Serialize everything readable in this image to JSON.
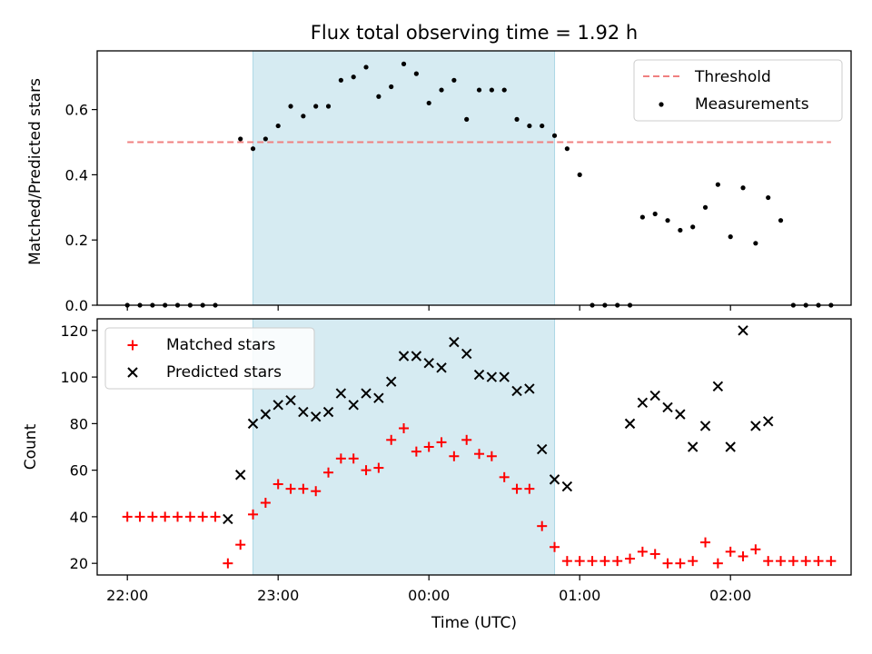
{
  "figure": {
    "title": "Flux total observing time = 1.92 h",
    "xlabel": "Time (UTC)"
  },
  "colors": {
    "threshold": "#f08080",
    "measurements": "#000000",
    "matched": "#ff0000",
    "predicted": "#000000",
    "observing_window": "#add8e6"
  },
  "chart_data": [
    {
      "type": "scatter",
      "title": "Flux total observing time = 1.92 h",
      "xlabel": "",
      "ylabel": "Matched/Predicted stars",
      "xlim": [
        "21:48",
        "02:48"
      ],
      "ylim": [
        0,
        0.78
      ],
      "yticks": [
        0.0,
        0.2,
        0.4,
        0.6
      ],
      "ytick_labels": [
        "0.0",
        "0.2",
        "0.4",
        "0.6"
      ],
      "grid": false,
      "legend_position": "top-right",
      "observing_window": {
        "start": "22:50",
        "end": "00:50"
      },
      "series": [
        {
          "name": "Threshold",
          "kind": "line",
          "style": "dashed",
          "color": "#f08080",
          "x": [
            "22:00",
            "02:40"
          ],
          "y": [
            0.5,
            0.5
          ]
        },
        {
          "name": "Measurements",
          "kind": "scatter",
          "marker": "dot",
          "color": "#000000",
          "points": [
            [
              "22:00",
              0
            ],
            [
              "22:05",
              0
            ],
            [
              "22:10",
              0
            ],
            [
              "22:15",
              0
            ],
            [
              "22:20",
              0
            ],
            [
              "22:25",
              0
            ],
            [
              "22:30",
              0
            ],
            [
              "22:35",
              0
            ],
            [
              "22:45",
              0.51
            ],
            [
              "22:50",
              0.48
            ],
            [
              "22:55",
              0.51
            ],
            [
              "23:00",
              0.55
            ],
            [
              "23:05",
              0.61
            ],
            [
              "23:10",
              0.58
            ],
            [
              "23:15",
              0.61
            ],
            [
              "23:20",
              0.61
            ],
            [
              "23:25",
              0.69
            ],
            [
              "23:30",
              0.7
            ],
            [
              "23:35",
              0.73
            ],
            [
              "23:40",
              0.64
            ],
            [
              "23:45",
              0.67
            ],
            [
              "23:50",
              0.74
            ],
            [
              "23:55",
              0.71
            ],
            [
              "00:00",
              0.62
            ],
            [
              "00:05",
              0.66
            ],
            [
              "00:10",
              0.69
            ],
            [
              "00:15",
              0.57
            ],
            [
              "00:20",
              0.66
            ],
            [
              "00:25",
              0.66
            ],
            [
              "00:30",
              0.66
            ],
            [
              "00:35",
              0.57
            ],
            [
              "00:40",
              0.55
            ],
            [
              "00:45",
              0.55
            ],
            [
              "00:50",
              0.52
            ],
            [
              "00:55",
              0.48
            ],
            [
              "01:00",
              0.4
            ],
            [
              "01:05",
              0
            ],
            [
              "01:10",
              0
            ],
            [
              "01:15",
              0
            ],
            [
              "01:20",
              0
            ],
            [
              "01:25",
              0.27
            ],
            [
              "01:30",
              0.28
            ],
            [
              "01:35",
              0.26
            ],
            [
              "01:40",
              0.23
            ],
            [
              "01:45",
              0.24
            ],
            [
              "01:50",
              0.3
            ],
            [
              "01:55",
              0.37
            ],
            [
              "02:00",
              0.21
            ],
            [
              "02:05",
              0.36
            ],
            [
              "02:10",
              0.19
            ],
            [
              "02:15",
              0.33
            ],
            [
              "02:20",
              0.26
            ],
            [
              "02:25",
              0
            ],
            [
              "02:30",
              0
            ],
            [
              "02:35",
              0
            ],
            [
              "02:40",
              0
            ]
          ]
        }
      ]
    },
    {
      "type": "scatter",
      "xlabel": "Time (UTC)",
      "ylabel": "Count",
      "xlim": [
        "21:48",
        "02:48"
      ],
      "ylim": [
        15,
        125
      ],
      "yticks": [
        20,
        40,
        60,
        80,
        100,
        120
      ],
      "xticks": [
        "22:00",
        "23:00",
        "00:00",
        "01:00",
        "02:00"
      ],
      "xtick_labels": [
        "22:00",
        "23:00",
        "00:00",
        "01:00",
        "02:00"
      ],
      "grid": false,
      "legend_position": "top-left",
      "observing_window": {
        "start": "22:50",
        "end": "00:50"
      },
      "series": [
        {
          "name": "Matched stars",
          "marker": "plus",
          "color": "#ff0000",
          "points": [
            [
              "22:00",
              40
            ],
            [
              "22:05",
              40
            ],
            [
              "22:10",
              40
            ],
            [
              "22:15",
              40
            ],
            [
              "22:20",
              40
            ],
            [
              "22:25",
              40
            ],
            [
              "22:30",
              40
            ],
            [
              "22:35",
              40
            ],
            [
              "22:40",
              20
            ],
            [
              "22:45",
              28
            ],
            [
              "22:50",
              41
            ],
            [
              "22:55",
              46
            ],
            [
              "23:00",
              54
            ],
            [
              "23:05",
              52
            ],
            [
              "23:10",
              52
            ],
            [
              "23:15",
              51
            ],
            [
              "23:20",
              59
            ],
            [
              "23:25",
              65
            ],
            [
              "23:30",
              65
            ],
            [
              "23:35",
              60
            ],
            [
              "23:40",
              61
            ],
            [
              "23:45",
              73
            ],
            [
              "23:50",
              78
            ],
            [
              "23:55",
              68
            ],
            [
              "00:00",
              70
            ],
            [
              "00:05",
              72
            ],
            [
              "00:10",
              66
            ],
            [
              "00:15",
              73
            ],
            [
              "00:20",
              67
            ],
            [
              "00:25",
              66
            ],
            [
              "00:30",
              57
            ],
            [
              "00:35",
              52
            ],
            [
              "00:40",
              52
            ],
            [
              "00:45",
              36
            ],
            [
              "00:50",
              27
            ],
            [
              "00:55",
              21
            ],
            [
              "01:00",
              21
            ],
            [
              "01:05",
              21
            ],
            [
              "01:10",
              21
            ],
            [
              "01:15",
              21
            ],
            [
              "01:20",
              22
            ],
            [
              "01:25",
              25
            ],
            [
              "01:30",
              24
            ],
            [
              "01:35",
              20
            ],
            [
              "01:40",
              20
            ],
            [
              "01:45",
              21
            ],
            [
              "01:50",
              29
            ],
            [
              "01:55",
              20
            ],
            [
              "02:00",
              25
            ],
            [
              "02:05",
              23
            ],
            [
              "02:10",
              26
            ],
            [
              "02:15",
              21
            ],
            [
              "02:20",
              21
            ],
            [
              "02:25",
              21
            ],
            [
              "02:30",
              21
            ],
            [
              "02:35",
              21
            ],
            [
              "02:40",
              21
            ]
          ]
        },
        {
          "name": "Predicted stars",
          "marker": "x",
          "color": "#000000",
          "points": [
            [
              "22:40",
              39
            ],
            [
              "22:45",
              58
            ],
            [
              "22:50",
              80
            ],
            [
              "22:55",
              84
            ],
            [
              "23:00",
              88
            ],
            [
              "23:05",
              90
            ],
            [
              "23:10",
              85
            ],
            [
              "23:15",
              83
            ],
            [
              "23:20",
              85
            ],
            [
              "23:25",
              93
            ],
            [
              "23:30",
              88
            ],
            [
              "23:35",
              93
            ],
            [
              "23:40",
              91
            ],
            [
              "23:45",
              98
            ],
            [
              "23:50",
              109
            ],
            [
              "23:55",
              109
            ],
            [
              "00:00",
              106
            ],
            [
              "00:05",
              104
            ],
            [
              "00:10",
              115
            ],
            [
              "00:15",
              110
            ],
            [
              "00:20",
              101
            ],
            [
              "00:25",
              100
            ],
            [
              "00:30",
              100
            ],
            [
              "00:35",
              94
            ],
            [
              "00:40",
              95
            ],
            [
              "00:45",
              69
            ],
            [
              "00:50",
              56
            ],
            [
              "00:55",
              53
            ],
            [
              "01:20",
              80
            ],
            [
              "01:25",
              89
            ],
            [
              "01:30",
              92
            ],
            [
              "01:35",
              87
            ],
            [
              "01:40",
              84
            ],
            [
              "01:45",
              70
            ],
            [
              "01:50",
              79
            ],
            [
              "01:55",
              96
            ],
            [
              "02:00",
              70
            ],
            [
              "02:05",
              120
            ],
            [
              "02:10",
              79
            ],
            [
              "02:15",
              81
            ]
          ]
        }
      ]
    }
  ]
}
